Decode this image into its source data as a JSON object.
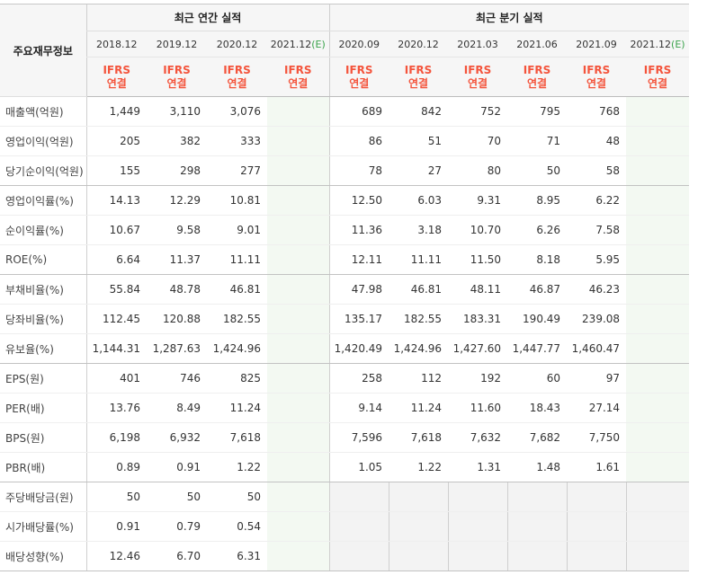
{
  "header": {
    "label_title": "주요재무정보",
    "annual_group": "최근 연간 실적",
    "quarter_group": "최근 분기 실적",
    "ifrs_line1": "IFRS",
    "ifrs_line2": "연결",
    "annual_periods": [
      {
        "date": "2018.12",
        "est": ""
      },
      {
        "date": "2019.12",
        "est": ""
      },
      {
        "date": "2020.12",
        "est": ""
      },
      {
        "date": "2021.12",
        "est": "(E)"
      }
    ],
    "quarter_periods": [
      {
        "date": "2020.09",
        "est": ""
      },
      {
        "date": "2020.12",
        "est": ""
      },
      {
        "date": "2021.03",
        "est": ""
      },
      {
        "date": "2021.06",
        "est": ""
      },
      {
        "date": "2021.09",
        "est": ""
      },
      {
        "date": "2021.12",
        "est": "(E)"
      }
    ]
  },
  "rows": [
    {
      "label": "매출액(억원)",
      "annual": [
        "1,449",
        "3,110",
        "3,076",
        ""
      ],
      "quarter": [
        "689",
        "842",
        "752",
        "795",
        "768",
        ""
      ]
    },
    {
      "label": "영업이익(억원)",
      "annual": [
        "205",
        "382",
        "333",
        ""
      ],
      "quarter": [
        "86",
        "51",
        "70",
        "71",
        "48",
        ""
      ]
    },
    {
      "label": "당기순이익(억원)",
      "annual": [
        "155",
        "298",
        "277",
        ""
      ],
      "quarter": [
        "78",
        "27",
        "80",
        "50",
        "58",
        ""
      ]
    },
    {
      "label": "영업이익률(%)",
      "annual": [
        "14.13",
        "12.29",
        "10.81",
        ""
      ],
      "quarter": [
        "12.50",
        "6.03",
        "9.31",
        "8.95",
        "6.22",
        ""
      ]
    },
    {
      "label": "순이익률(%)",
      "annual": [
        "10.67",
        "9.58",
        "9.01",
        ""
      ],
      "quarter": [
        "11.36",
        "3.18",
        "10.70",
        "6.26",
        "7.58",
        ""
      ]
    },
    {
      "label": "ROE(%)",
      "annual": [
        "6.64",
        "11.37",
        "11.11",
        ""
      ],
      "quarter": [
        "12.11",
        "11.11",
        "11.50",
        "8.18",
        "5.95",
        ""
      ]
    },
    {
      "label": "부채비율(%)",
      "annual": [
        "55.84",
        "48.78",
        "46.81",
        ""
      ],
      "quarter": [
        "47.98",
        "46.81",
        "48.11",
        "46.87",
        "46.23",
        ""
      ]
    },
    {
      "label": "당좌비율(%)",
      "annual": [
        "112.45",
        "120.88",
        "182.55",
        ""
      ],
      "quarter": [
        "135.17",
        "182.55",
        "183.31",
        "190.49",
        "239.08",
        ""
      ]
    },
    {
      "label": "유보율(%)",
      "annual": [
        "1,144.31",
        "1,287.63",
        "1,424.96",
        ""
      ],
      "quarter": [
        "1,420.49",
        "1,424.96",
        "1,427.60",
        "1,447.77",
        "1,460.47",
        ""
      ]
    },
    {
      "label": "EPS(원)",
      "annual": [
        "401",
        "746",
        "825",
        ""
      ],
      "quarter": [
        "258",
        "112",
        "192",
        "60",
        "97",
        ""
      ]
    },
    {
      "label": "PER(배)",
      "annual": [
        "13.76",
        "8.49",
        "11.24",
        ""
      ],
      "quarter": [
        "9.14",
        "11.24",
        "11.60",
        "18.43",
        "27.14",
        ""
      ]
    },
    {
      "label": "BPS(원)",
      "annual": [
        "6,198",
        "6,932",
        "7,618",
        ""
      ],
      "quarter": [
        "7,596",
        "7,618",
        "7,632",
        "7,682",
        "7,750",
        ""
      ]
    },
    {
      "label": "PBR(배)",
      "annual": [
        "0.89",
        "0.91",
        "1.22",
        ""
      ],
      "quarter": [
        "1.05",
        "1.22",
        "1.31",
        "1.48",
        "1.61",
        ""
      ]
    },
    {
      "label": "주당배당금(원)",
      "annual": [
        "50",
        "50",
        "50",
        ""
      ],
      "quarter": [
        "",
        "",
        "",
        "",
        "",
        ""
      ]
    },
    {
      "label": "시가배당률(%)",
      "annual": [
        "0.91",
        "0.79",
        "0.54",
        ""
      ],
      "quarter": [
        "",
        "",
        "",
        "",
        "",
        ""
      ]
    },
    {
      "label": "배당성향(%)",
      "annual": [
        "12.46",
        "6.70",
        "6.31",
        ""
      ],
      "quarter": [
        "",
        "",
        "",
        "",
        "",
        ""
      ]
    }
  ]
}
